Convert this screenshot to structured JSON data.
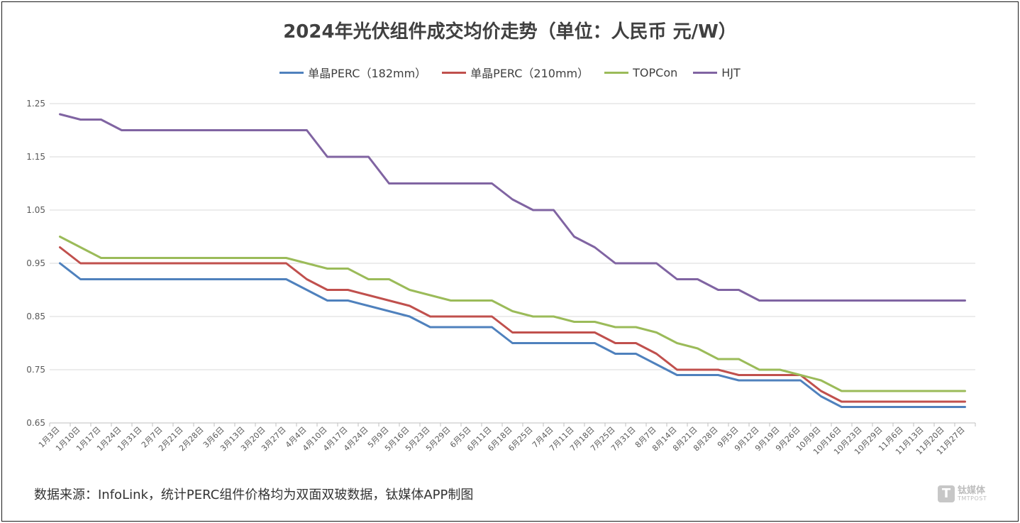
{
  "chart_data": {
    "type": "line",
    "title": "2024年光伏组件成交均价走势（单位：人民币 元/W）",
    "xlabel": "",
    "ylabel": "",
    "ylim": [
      0.65,
      1.25
    ],
    "yticks": [
      "1.25",
      "1.15",
      "1.05",
      "0.95",
      "0.85",
      "0.75",
      "0.65"
    ],
    "categories": [
      "1月3日",
      "1月10日",
      "1月17日",
      "1月24日",
      "1月31日",
      "2月7日",
      "2月21日",
      "2月28日",
      "3月6日",
      "3月13日",
      "3月20日",
      "3月27日",
      "4月4日",
      "4月10日",
      "4月17日",
      "4月24日",
      "5月9日",
      "5月16日",
      "5月23日",
      "5月29日",
      "6月5日",
      "6月11日",
      "6月18日",
      "6月25日",
      "7月4日",
      "7月11日",
      "7月18日",
      "7月25日",
      "7月31日",
      "8月7日",
      "8月14日",
      "8月21日",
      "8月28日",
      "9月5日",
      "9月12日",
      "9月19日",
      "9月26日",
      "10月9日",
      "10月16日",
      "10月23日",
      "10月29日",
      "11月6日",
      "11月13日",
      "11月20日",
      "11月27日"
    ],
    "series": [
      {
        "name": "单晶PERC（182mm）",
        "color": "#4f81bd",
        "values": [
          0.95,
          0.92,
          0.92,
          0.92,
          0.92,
          0.92,
          0.92,
          0.92,
          0.92,
          0.92,
          0.92,
          0.92,
          0.9,
          0.88,
          0.88,
          0.87,
          0.86,
          0.85,
          0.83,
          0.83,
          0.83,
          0.83,
          0.8,
          0.8,
          0.8,
          0.8,
          0.8,
          0.78,
          0.78,
          0.76,
          0.74,
          0.74,
          0.74,
          0.73,
          0.73,
          0.73,
          0.73,
          0.7,
          0.68,
          0.68,
          0.68,
          0.68,
          0.68,
          0.68,
          0.68
        ]
      },
      {
        "name": "单晶PERC（210mm）",
        "color": "#c0504d",
        "values": [
          0.98,
          0.95,
          0.95,
          0.95,
          0.95,
          0.95,
          0.95,
          0.95,
          0.95,
          0.95,
          0.95,
          0.95,
          0.92,
          0.9,
          0.9,
          0.89,
          0.88,
          0.87,
          0.85,
          0.85,
          0.85,
          0.85,
          0.82,
          0.82,
          0.82,
          0.82,
          0.82,
          0.8,
          0.8,
          0.78,
          0.75,
          0.75,
          0.75,
          0.74,
          0.74,
          0.74,
          0.74,
          0.71,
          0.69,
          0.69,
          0.69,
          0.69,
          0.69,
          0.69,
          0.69
        ]
      },
      {
        "name": "TOPCon",
        "color": "#9bbb59",
        "values": [
          1.0,
          0.98,
          0.96,
          0.96,
          0.96,
          0.96,
          0.96,
          0.96,
          0.96,
          0.96,
          0.96,
          0.96,
          0.95,
          0.94,
          0.94,
          0.92,
          0.92,
          0.9,
          0.89,
          0.88,
          0.88,
          0.88,
          0.86,
          0.85,
          0.85,
          0.84,
          0.84,
          0.83,
          0.83,
          0.82,
          0.8,
          0.79,
          0.77,
          0.77,
          0.75,
          0.75,
          0.74,
          0.73,
          0.71,
          0.71,
          0.71,
          0.71,
          0.71,
          0.71,
          0.71
        ]
      },
      {
        "name": "HJT",
        "color": "#8064a2",
        "values": [
          1.23,
          1.22,
          1.22,
          1.2,
          1.2,
          1.2,
          1.2,
          1.2,
          1.2,
          1.2,
          1.2,
          1.2,
          1.2,
          1.15,
          1.15,
          1.15,
          1.1,
          1.1,
          1.1,
          1.1,
          1.1,
          1.1,
          1.07,
          1.05,
          1.05,
          1.0,
          0.98,
          0.95,
          0.95,
          0.95,
          0.92,
          0.92,
          0.9,
          0.9,
          0.88,
          0.88,
          0.88,
          0.88,
          0.88,
          0.88,
          0.88,
          0.88,
          0.88,
          0.88,
          0.88
        ]
      }
    ],
    "legend_position": "top-center",
    "grid": true
  },
  "footer": {
    "source": "数据来源：InfoLink，统计PERC组件价格均为双面双玻数据，钛媒体APP制图"
  },
  "watermark": {
    "icon_letter": "T",
    "cn": "钛媒体",
    "en": "TMTPOST"
  }
}
